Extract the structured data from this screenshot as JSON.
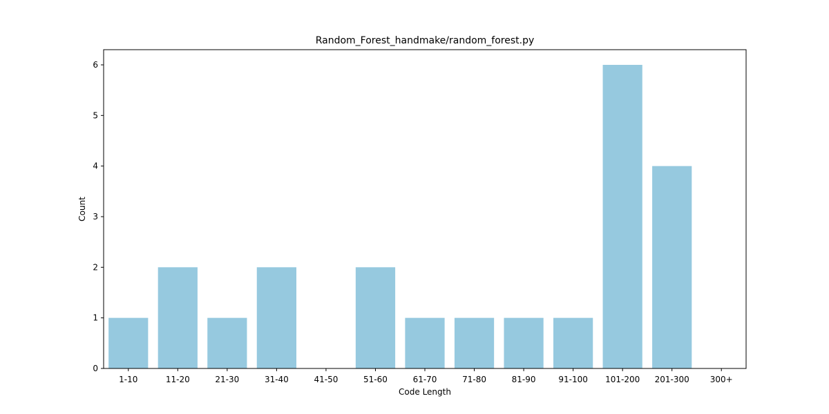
{
  "chart_data": {
    "type": "bar",
    "title": "Random_Forest_handmake/random_forest.py",
    "xlabel": "Code Length",
    "ylabel": "Count",
    "categories": [
      "1-10",
      "11-20",
      "21-30",
      "31-40",
      "41-50",
      "51-60",
      "61-70",
      "71-80",
      "81-90",
      "91-100",
      "101-200",
      "201-300",
      "300+"
    ],
    "values": [
      1,
      2,
      1,
      2,
      0,
      2,
      1,
      1,
      1,
      1,
      6,
      4,
      0
    ],
    "yticks": [
      0,
      1,
      2,
      3,
      4,
      5,
      6
    ],
    "ylim": [
      0,
      6.3
    ],
    "bar_color": "#96c9df",
    "grid": false,
    "legend": "none"
  }
}
